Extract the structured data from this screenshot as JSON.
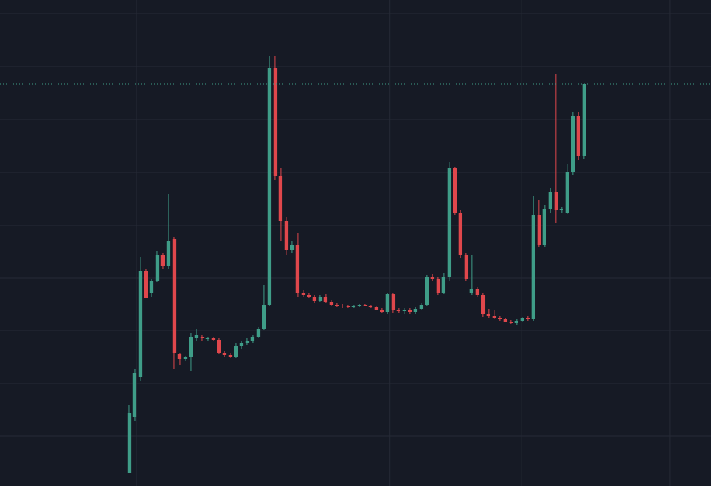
{
  "chart_data": {
    "type": "candlestick",
    "x": [
      0,
      1,
      2,
      3,
      4,
      5,
      6,
      7,
      8,
      9,
      10,
      11,
      12,
      13,
      14,
      15,
      16,
      17,
      18,
      19,
      20,
      21,
      22,
      23,
      24,
      25,
      26,
      27,
      28,
      29,
      30,
      31,
      32,
      33,
      34,
      35,
      36,
      37,
      38,
      39,
      40,
      41,
      42,
      43,
      44,
      45,
      46,
      47,
      48,
      49,
      50,
      51,
      52,
      53,
      54,
      55,
      56,
      57,
      58,
      59,
      60,
      61,
      62,
      63,
      64,
      65,
      66,
      67,
      68,
      69,
      70,
      71,
      72,
      73,
      74,
      75,
      76,
      77,
      78,
      79,
      80,
      81
    ],
    "open": [
      16,
      86,
      136,
      268,
      241,
      256,
      288,
      274,
      308,
      164,
      158,
      161,
      184,
      186,
      183,
      185,
      182,
      166,
      163,
      161,
      174,
      178,
      181,
      186,
      196,
      226,
      521,
      386,
      331,
      294,
      301,
      241,
      238,
      236,
      231,
      236,
      230,
      226,
      225,
      224,
      223,
      225,
      226,
      225,
      223,
      220,
      217,
      239,
      219,
      218,
      220,
      217,
      221,
      226,
      261,
      258,
      241,
      261,
      396,
      340,
      288,
      241,
      246,
      238,
      214,
      212,
      210,
      208,
      205,
      203,
      206,
      209,
      208,
      338,
      301,
      346,
      366,
      344,
      341,
      391,
      461,
      411
    ],
    "high": [
      101,
      146,
      286,
      271,
      258,
      293,
      291,
      364,
      311,
      166,
      162,
      191,
      196,
      188,
      186,
      186,
      184,
      168,
      166,
      178,
      181,
      184,
      188,
      198,
      251,
      536,
      536,
      396,
      336,
      306,
      316,
      244,
      241,
      238,
      238,
      240,
      232,
      228,
      227,
      226,
      226,
      227,
      227,
      226,
      225,
      222,
      241,
      241,
      222,
      222,
      222,
      223,
      228,
      263,
      264,
      261,
      266,
      404,
      398,
      344,
      291,
      288,
      248,
      241,
      221,
      220,
      212,
      210,
      207,
      208,
      211,
      212,
      361,
      356,
      351,
      371,
      514,
      348,
      401,
      466,
      466,
      501
    ],
    "low": [
      16,
      81,
      131,
      234,
      236,
      254,
      271,
      271,
      146,
      151,
      156,
      144,
      181,
      181,
      181,
      181,
      164,
      161,
      159,
      159,
      171,
      176,
      178,
      184,
      194,
      224,
      381,
      306,
      288,
      291,
      236,
      236,
      234,
      228,
      229,
      228,
      224,
      223,
      222,
      222,
      222,
      223,
      224,
      222,
      219,
      216,
      214,
      216,
      216,
      215,
      215,
      215,
      219,
      224,
      256,
      238,
      239,
      256,
      338,
      284,
      256,
      238,
      236,
      211,
      210,
      208,
      206,
      204,
      202,
      201,
      204,
      206,
      206,
      298,
      298,
      341,
      328,
      341,
      339,
      388,
      406,
      408
    ],
    "close": [
      91,
      141,
      268,
      234,
      256,
      288,
      274,
      306,
      166,
      158,
      161,
      186,
      188,
      184,
      185,
      182,
      166,
      163,
      161,
      174,
      178,
      181,
      186,
      196,
      226,
      521,
      386,
      331,
      294,
      301,
      241,
      238,
      236,
      231,
      236,
      230,
      226,
      225,
      224,
      223,
      225,
      226,
      225,
      223,
      220,
      217,
      239,
      219,
      218,
      220,
      217,
      221,
      226,
      261,
      258,
      241,
      261,
      396,
      340,
      288,
      258,
      246,
      238,
      214,
      212,
      210,
      208,
      205,
      203,
      206,
      209,
      208,
      338,
      301,
      346,
      366,
      344,
      346,
      391,
      461,
      411,
      501
    ],
    "up_color": "#3f9d88",
    "down_color": "#e0474c",
    "xlim": [
      -23,
      103.6
    ],
    "xticks": [
      1.3,
      46.4,
      69.9,
      96.3
    ],
    "ylim": [
      0,
      606
    ],
    "yticks": [
      62,
      128,
      194,
      259,
      325,
      391,
      457,
      523,
      589
    ],
    "grid": true,
    "last_price_line": true
  }
}
